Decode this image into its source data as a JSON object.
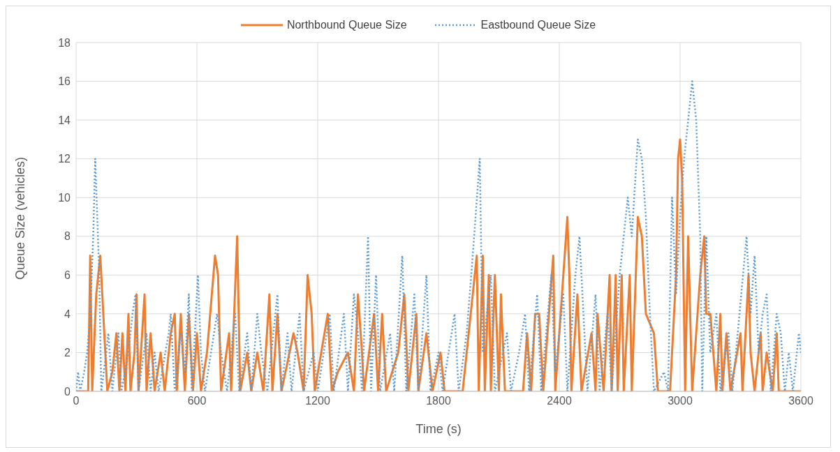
{
  "chart_data": {
    "type": "line",
    "xlabel": "Time (s)",
    "ylabel": "Queue Size (vehicles)",
    "xlim": [
      0,
      3600
    ],
    "xticks": [
      0,
      600,
      1200,
      1800,
      2400,
      3000,
      3600
    ],
    "ylim": [
      0,
      18
    ],
    "yticks": [
      0,
      2,
      4,
      6,
      8,
      10,
      12,
      14,
      16,
      18
    ],
    "grid": true,
    "legend": "top",
    "series": [
      {
        "name": "Northbound Queue Size",
        "color": "#ed7d31",
        "line_style": "solid",
        "x": [
          0,
          60,
          70,
          80,
          100,
          120,
          140,
          155,
          180,
          200,
          215,
          230,
          245,
          260,
          270,
          290,
          300,
          310,
          340,
          350,
          370,
          390,
          420,
          440,
          470,
          490,
          500,
          520,
          540,
          560,
          580,
          600,
          620,
          650,
          690,
          705,
          720,
          760,
          770,
          800,
          815,
          850,
          870,
          900,
          930,
          960,
          975,
          1000,
          1020,
          1080,
          1100,
          1130,
          1150,
          1170,
          1185,
          1250,
          1270,
          1300,
          1350,
          1380,
          1400,
          1420,
          1430,
          1480,
          1500,
          1520,
          1540,
          1600,
          1630,
          1650,
          1690,
          1700,
          1740,
          1770,
          1810,
          1830,
          1880,
          1920,
          1990,
          2000,
          2020,
          2030,
          2050,
          2060,
          2080,
          2100,
          2110,
          2130,
          2220,
          2240,
          2260,
          2280,
          2300,
          2320,
          2370,
          2380,
          2400,
          2440,
          2450,
          2460,
          2490,
          2510,
          2560,
          2580,
          2590,
          2620,
          2650,
          2660,
          2680,
          2690,
          2710,
          2720,
          2750,
          2760,
          2790,
          2810,
          2830,
          2870,
          2890,
          2950,
          2980,
          2990,
          3000,
          3010,
          3025,
          3040,
          3060,
          3100,
          3120,
          3130,
          3150,
          3180,
          3200,
          3210,
          3230,
          3250,
          3300,
          3310,
          3340,
          3350,
          3370,
          3400,
          3410,
          3430,
          3460,
          3480,
          3490,
          3600
        ],
        "values": [
          0,
          0,
          7,
          0,
          5,
          7,
          3,
          0,
          1,
          3,
          0,
          3,
          0,
          4,
          0,
          2,
          5,
          0,
          5,
          0,
          3,
          0,
          2,
          0,
          3,
          4,
          0,
          4,
          0,
          4,
          0,
          3,
          0,
          2,
          7,
          6,
          0,
          3,
          0,
          8,
          0,
          2,
          0,
          2,
          0,
          5,
          0,
          4,
          0,
          3,
          2,
          0,
          6,
          4,
          0,
          4,
          0,
          1,
          2,
          0,
          5,
          2,
          0,
          4,
          0,
          4,
          0,
          2,
          5,
          0,
          4,
          0,
          3,
          0,
          2,
          0,
          0,
          0,
          7,
          0,
          7,
          0,
          6,
          0,
          6,
          0,
          5,
          0,
          0,
          3,
          0,
          4,
          4,
          0,
          7,
          0,
          3,
          9,
          6,
          0,
          5,
          0,
          3,
          0,
          4,
          0,
          6,
          0,
          6,
          0,
          6,
          0,
          6,
          0,
          9,
          8,
          4,
          3,
          0,
          0,
          6,
          12,
          13,
          11,
          0,
          8,
          0,
          6,
          8,
          4,
          4,
          0,
          4,
          0,
          3,
          0,
          3,
          0,
          6,
          2,
          0,
          3,
          0,
          2,
          0,
          3,
          0,
          0
        ]
      },
      {
        "name": "Eastbound Queue Size",
        "color": "#5b9bd5",
        "line_style": "dotted",
        "x": [
          0,
          10,
          20,
          40,
          55,
          70,
          85,
          95,
          105,
          115,
          125,
          150,
          160,
          180,
          210,
          225,
          260,
          280,
          295,
          310,
          350,
          370,
          390,
          410,
          460,
          470,
          490,
          520,
          540,
          560,
          575,
          605,
          620,
          640,
          700,
          720,
          750,
          790,
          810,
          850,
          870,
          900,
          920,
          950,
          1000,
          1020,
          1050,
          1070,
          1110,
          1130,
          1180,
          1200,
          1260,
          1280,
          1330,
          1350,
          1380,
          1400,
          1420,
          1450,
          1465,
          1490,
          1510,
          1560,
          1580,
          1620,
          1640,
          1680,
          1700,
          1740,
          1760,
          1800,
          1820,
          1880,
          1900,
          1940,
          1970,
          2005,
          2020,
          2040,
          2060,
          2080,
          2140,
          2160,
          2200,
          2230,
          2250,
          2290,
          2310,
          2360,
          2380,
          2420,
          2440,
          2480,
          2500,
          2520,
          2540,
          2580,
          2600,
          2640,
          2660,
          2700,
          2740,
          2760,
          2790,
          2810,
          2830,
          2850,
          2870,
          2920,
          2940,
          2960,
          2980,
          3000,
          3020,
          3040,
          3060,
          3080,
          3100,
          3110,
          3130,
          3150,
          3180,
          3200,
          3240,
          3260,
          3330,
          3350,
          3370,
          3390,
          3410,
          3430,
          3450,
          3480,
          3500,
          3520,
          3540,
          3560,
          3590,
          3600
        ],
        "values": [
          0,
          1,
          0,
          1,
          2,
          4,
          8,
          12,
          9,
          6,
          0,
          2,
          3,
          0,
          3,
          0,
          2,
          4,
          5,
          0,
          3,
          0,
          2,
          0,
          3,
          4,
          0,
          3,
          1,
          5,
          0,
          6,
          2,
          0,
          4,
          2,
          0,
          4,
          0,
          3,
          0,
          4,
          2,
          0,
          5,
          0,
          3,
          0,
          4,
          0,
          2,
          0,
          4,
          0,
          4,
          0,
          5,
          3,
          0,
          8,
          0,
          6,
          0,
          3,
          0,
          7,
          0,
          5,
          0,
          6,
          0,
          2,
          0,
          4,
          0,
          3,
          7,
          12,
          2,
          4,
          6,
          0,
          3,
          0,
          2,
          4,
          0,
          5,
          0,
          6,
          1,
          5,
          0,
          6,
          8,
          4,
          0,
          5,
          0,
          4,
          0,
          6,
          10,
          8,
          13,
          12,
          9,
          4,
          0,
          1,
          0,
          10,
          5,
          9,
          12,
          14,
          16,
          14,
          8,
          0,
          8,
          2,
          4,
          0,
          3,
          0,
          8,
          4,
          7,
          2,
          4,
          5,
          0,
          4,
          3,
          0,
          2,
          0,
          3,
          2
        ]
      }
    ]
  }
}
